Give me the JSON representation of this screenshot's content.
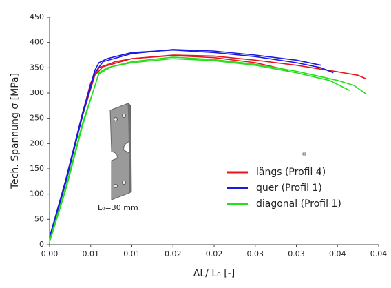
{
  "chart_data": {
    "type": "line",
    "y_label": "Tech. Spannung σ [MPa]",
    "x_label": "ΔL/ L₀ [-]",
    "annotation": "L₀=30 mm",
    "xlim": [
      0,
      0.04
    ],
    "ylim": [
      0,
      450
    ],
    "xticks": [
      {
        "value": 0,
        "label": "0.00"
      },
      {
        "value": 0.005,
        "label": "0.01"
      },
      {
        "value": 0.01,
        "label": "0.01"
      },
      {
        "value": 0.015,
        "label": "0.02"
      },
      {
        "value": 0.02,
        "label": "0.02"
      },
      {
        "value": 0.025,
        "label": "0.03"
      },
      {
        "value": 0.03,
        "label": "0.03"
      },
      {
        "value": 0.035,
        "label": "0.04"
      },
      {
        "value": 0.04,
        "label": "0.04"
      }
    ],
    "yticks": [
      0,
      50,
      100,
      150,
      200,
      250,
      300,
      350,
      400,
      450
    ],
    "grid": false,
    "legend": "lower right",
    "series": [
      {
        "name": "längs (Profil 4)",
        "color": "#e8141c",
        "curves": [
          {
            "x": [
              0,
              0.001,
              0.002,
              0.003,
              0.004,
              0.005,
              0.006,
              0.008,
              0.01,
              0.015,
              0.02,
              0.025,
              0.03,
              0.035,
              0.0375,
              0.0385
            ],
            "values": [
              15,
              70,
              130,
              195,
              260,
              320,
              350,
              362,
              368,
              375,
              373,
              365,
              355,
              342,
              335,
              328
            ]
          },
          {
            "x": [
              0,
              0.002,
              0.004,
              0.0055,
              0.0065,
              0.01,
              0.015,
              0.02,
              0.025,
              0.029
            ],
            "values": [
              10,
              125,
              255,
              335,
              352,
              368,
              374,
              370,
              360,
              345
            ]
          }
        ]
      },
      {
        "name": "quer (Profil 1)",
        "color": "#1a1ae0",
        "curves": [
          {
            "x": [
              0,
              0.002,
              0.004,
              0.0055,
              0.006,
              0.007,
              0.01,
              0.015,
              0.02,
              0.025,
              0.03,
              0.033,
              0.0345
            ],
            "values": [
              15,
              130,
              260,
              345,
              360,
              368,
              380,
              385,
              380,
              372,
              360,
              350,
              340
            ]
          },
          {
            "x": [
              0,
              0.002,
              0.004,
              0.0055,
              0.0065,
              0.01,
              0.015,
              0.02,
              0.025,
              0.03,
              0.033
            ],
            "values": [
              12,
              125,
              255,
              340,
              362,
              378,
              386,
              383,
              375,
              365,
              355
            ]
          }
        ]
      },
      {
        "name": "diagonal (Profil 1)",
        "color": "#22e01a",
        "curves": [
          {
            "x": [
              0,
              0.002,
              0.004,
              0.006,
              0.007,
              0.01,
              0.015,
              0.02,
              0.025,
              0.03,
              0.035,
              0.037,
              0.0385
            ],
            "values": [
              5,
              110,
              235,
              340,
              350,
              362,
              371,
              366,
              357,
              343,
              325,
              315,
              298
            ]
          },
          {
            "x": [
              0,
              0.002,
              0.004,
              0.006,
              0.0075,
              0.01,
              0.015,
              0.02,
              0.025,
              0.03,
              0.034,
              0.0365
            ],
            "values": [
              8,
              115,
              240,
              338,
              352,
              360,
              368,
              364,
              355,
              340,
              325,
              305
            ]
          }
        ]
      }
    ]
  }
}
